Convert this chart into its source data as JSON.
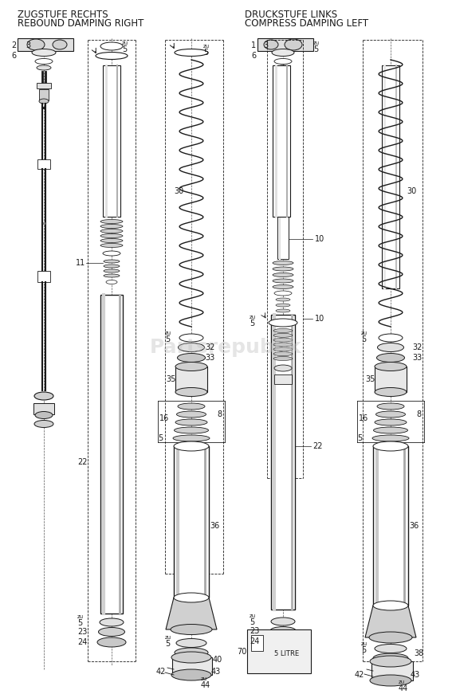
{
  "title_left_line1": "ZUGSTUFE RECHTS",
  "title_left_line2": "REBOUND DAMPING RIGHT",
  "title_right_line1": "DRUCKSTUFE LINKS",
  "title_right_line2": "COMPRESS DAMPING LEFT",
  "bg_color": "#ffffff",
  "line_color": "#1a1a1a",
  "watermark": "Partsrepublik",
  "watermark_color": "#c0c0c0",
  "title_fontsize": 8.5,
  "label_fontsize": 7
}
